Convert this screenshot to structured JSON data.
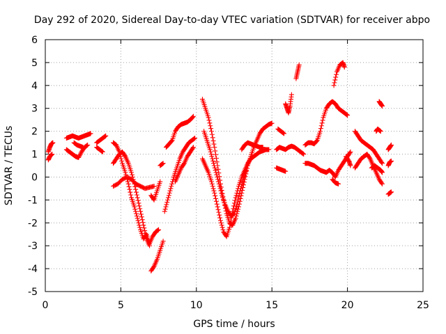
{
  "chart_data": {
    "type": "scatter",
    "title": "Day 292 of 2020, Sidereal Day-to-day VTEC variation (SDTVAR) for receiver abpo",
    "xlabel": "GPS time / hours",
    "ylabel": "SDTVAR / TECUs",
    "xlim": [
      0,
      25
    ],
    "ylim": [
      -5,
      6
    ],
    "xticks": [
      "0",
      "5",
      "10",
      "15",
      "20",
      "25"
    ],
    "yticks": [
      "-5",
      "-4",
      "-3",
      "-2",
      "-1",
      "0",
      "1",
      "2",
      "3",
      "4",
      "5",
      "6"
    ],
    "grid": true,
    "legend": "none",
    "marker": "plus",
    "color": "#ff0000",
    "segments": [
      {
        "x": [
          0.2,
          0.3,
          0.4,
          0.5
        ],
        "y": [
          1.1,
          1.3,
          1.45,
          1.5
        ]
      },
      {
        "x": [
          0.2,
          0.3,
          0.45
        ],
        "y": [
          0.75,
          0.9,
          1.0
        ]
      },
      {
        "x": [
          1.4,
          1.6,
          1.8,
          2.0,
          2.2,
          2.4,
          2.6,
          2.8,
          3.0
        ],
        "y": [
          1.7,
          1.75,
          1.8,
          1.75,
          1.7,
          1.75,
          1.8,
          1.85,
          1.9
        ]
      },
      {
        "x": [
          1.4,
          1.6,
          1.8,
          2.0,
          2.2,
          2.4,
          2.6,
          2.8
        ],
        "y": [
          1.2,
          1.1,
          1.0,
          0.9,
          0.85,
          1.1,
          1.3,
          1.4
        ]
      },
      {
        "x": [
          1.9,
          2.1,
          2.3,
          2.5
        ],
        "y": [
          1.5,
          1.4,
          1.35,
          1.3
        ]
      },
      {
        "x": [
          3.4,
          3.6,
          3.8,
          4.0
        ],
        "y": [
          1.5,
          1.6,
          1.7,
          1.8
        ]
      },
      {
        "x": [
          3.4,
          3.6,
          3.8
        ],
        "y": [
          1.3,
          1.2,
          1.1
        ]
      },
      {
        "x": [
          4.5,
          4.7,
          4.9,
          5.1,
          5.3,
          5.5,
          5.7,
          5.9,
          6.1,
          6.3,
          6.5,
          6.7,
          6.9
        ],
        "y": [
          0.6,
          0.8,
          1.0,
          1.1,
          0.9,
          0.6,
          0.2,
          -0.3,
          -0.9,
          -1.5,
          -2.1,
          -2.7,
          -3.0
        ]
      },
      {
        "x": [
          4.5,
          4.7,
          4.9,
          5.1,
          5.3,
          5.5,
          5.7,
          5.9,
          6.1,
          6.3,
          6.5,
          6.7,
          6.9,
          7.1,
          7.3,
          7.5
        ],
        "y": [
          1.5,
          1.4,
          1.1,
          0.6,
          0.2,
          -0.3,
          -0.9,
          -1.3,
          -1.8,
          -2.3,
          -2.7,
          -2.5,
          -2.9,
          -2.6,
          -2.4,
          -2.3
        ]
      },
      {
        "x": [
          4.5,
          4.8,
          5.1,
          5.4,
          5.7,
          6.0,
          6.3,
          6.6,
          6.9,
          7.2
        ],
        "y": [
          -0.4,
          -0.3,
          -0.1,
          0.0,
          -0.1,
          -0.3,
          -0.4,
          -0.5,
          -0.45,
          -0.4
        ]
      },
      {
        "x": [
          7.0,
          7.2,
          7.4,
          7.6,
          7.8
        ],
        "y": [
          -4.1,
          -3.9,
          -3.6,
          -3.2,
          -2.8
        ]
      },
      {
        "x": [
          7.0,
          7.2,
          7.4,
          7.6
        ],
        "y": [
          -0.8,
          -1.0,
          -0.6,
          -0.2
        ]
      },
      {
        "x": [
          7.6,
          7.8
        ],
        "y": [
          0.5,
          0.6
        ]
      },
      {
        "x": [
          7.9,
          8.1,
          8.3,
          8.5,
          8.7,
          8.9,
          9.1,
          9.3,
          9.5,
          9.7,
          9.9
        ],
        "y": [
          -1.5,
          -1.0,
          -0.5,
          0.0,
          0.4,
          0.8,
          1.1,
          1.3,
          1.5,
          1.6,
          1.7
        ]
      },
      {
        "x": [
          8.0,
          8.2,
          8.4,
          8.6,
          8.8,
          9.0,
          9.2,
          9.4,
          9.6,
          9.8
        ],
        "y": [
          1.3,
          1.45,
          1.6,
          2.0,
          2.2,
          2.3,
          2.35,
          2.4,
          2.5,
          2.65
        ]
      },
      {
        "x": [
          8.6,
          8.8,
          9.0,
          9.2,
          9.4,
          9.6,
          9.8
        ],
        "y": [
          -0.2,
          0.1,
          0.4,
          0.6,
          0.9,
          1.1,
          1.3
        ]
      },
      {
        "x": [
          10.4,
          10.6,
          10.8,
          11.0,
          11.2,
          11.4,
          11.6,
          11.8,
          12.0,
          12.2,
          12.4,
          12.6,
          12.8,
          13.0,
          13.2,
          13.4,
          13.6,
          13.8,
          14.0,
          14.2,
          14.4,
          14.6,
          14.8,
          15.0
        ],
        "y": [
          3.4,
          3.0,
          2.6,
          2.0,
          1.3,
          0.5,
          -0.3,
          -1.0,
          -1.6,
          -2.0,
          -2.1,
          -1.8,
          -1.3,
          -0.7,
          -0.1,
          0.5,
          0.9,
          1.3,
          1.6,
          1.9,
          2.1,
          2.2,
          2.3,
          2.35
        ]
      },
      {
        "x": [
          10.4,
          10.6,
          10.8,
          11.0,
          11.2,
          11.4,
          11.6,
          11.8,
          12.0,
          12.2,
          12.4,
          12.6,
          12.8,
          13.0,
          13.2,
          13.4,
          13.6,
          13.8,
          14.0,
          14.2,
          14.4,
          14.6,
          14.8
        ],
        "y": [
          0.8,
          0.5,
          0.2,
          -0.2,
          -0.7,
          -1.3,
          -1.9,
          -2.4,
          -2.6,
          -2.2,
          -1.5,
          -0.9,
          -0.4,
          0.0,
          0.3,
          0.6,
          0.8,
          0.9,
          1.0,
          1.1,
          1.15,
          1.2,
          1.2
        ]
      },
      {
        "x": [
          10.5,
          10.7,
          10.9,
          11.1,
          11.3,
          11.5,
          11.7,
          11.9,
          12.1,
          12.3,
          12.5,
          12.7,
          12.9,
          13.1,
          13.3
        ],
        "y": [
          2.0,
          1.6,
          1.2,
          0.7,
          0.2,
          -0.3,
          -0.8,
          -1.2,
          -1.5,
          -1.7,
          -1.6,
          -1.2,
          -0.6,
          -0.1,
          0.3
        ]
      },
      {
        "x": [
          13.0,
          13.2,
          13.4,
          13.6,
          13.8,
          14.0,
          14.2,
          14.4
        ],
        "y": [
          1.2,
          1.4,
          1.5,
          1.45,
          1.4,
          1.35,
          1.3,
          1.3
        ]
      },
      {
        "x": [
          15.4,
          15.6,
          15.8
        ],
        "y": [
          2.1,
          2.0,
          1.9
        ]
      },
      {
        "x": [
          15.3,
          15.5,
          15.7,
          15.9
        ],
        "y": [
          0.4,
          0.35,
          0.3,
          0.25
        ]
      },
      {
        "x": [
          15.3,
          15.5,
          15.7,
          15.9,
          16.1,
          16.3,
          16.5,
          16.7,
          16.9,
          17.1
        ],
        "y": [
          1.2,
          1.3,
          1.25,
          1.2,
          1.3,
          1.35,
          1.3,
          1.2,
          1.1,
          1.0
        ]
      },
      {
        "x": [
          15.9,
          16.0,
          16.1,
          16.2,
          16.3
        ],
        "y": [
          3.2,
          3.0,
          2.8,
          3.1,
          3.6
        ]
      },
      {
        "x": [
          16.6,
          16.7,
          16.8
        ],
        "y": [
          4.3,
          4.6,
          4.9
        ]
      },
      {
        "x": [
          17.2,
          17.4,
          17.6,
          17.8,
          18.0,
          18.2,
          18.4,
          18.6,
          18.8,
          19.0,
          19.2,
          19.4,
          19.6,
          19.8,
          20.0
        ],
        "y": [
          1.4,
          1.5,
          1.5,
          1.45,
          1.6,
          2.0,
          2.6,
          3.0,
          3.2,
          3.3,
          3.2,
          3.0,
          2.9,
          2.8,
          2.7
        ]
      },
      {
        "x": [
          17.2,
          17.4,
          17.6,
          17.8,
          18.0,
          18.2,
          18.4,
          18.6,
          18.8,
          19.0,
          19.2,
          19.4,
          19.6,
          19.8,
          20.0,
          20.2
        ],
        "y": [
          0.6,
          0.6,
          0.55,
          0.5,
          0.4,
          0.3,
          0.25,
          0.2,
          0.3,
          0.2,
          0.0,
          0.3,
          0.5,
          0.7,
          0.9,
          1.1
        ]
      },
      {
        "x": [
          19.0,
          19.2,
          19.4
        ],
        "y": [
          -0.1,
          -0.25,
          -0.3
        ]
      },
      {
        "x": [
          19.1,
          19.3,
          19.5,
          19.7,
          19.8
        ],
        "y": [
          4.0,
          4.6,
          4.9,
          5.0,
          4.8
        ]
      },
      {
        "x": [
          19.9,
          20.1,
          20.2
        ],
        "y": [
          0.9,
          0.7,
          0.5
        ]
      },
      {
        "x": [
          20.5,
          20.7,
          20.9,
          21.1,
          21.3,
          21.5,
          21.7,
          21.9,
          22.1,
          22.3
        ],
        "y": [
          2.0,
          1.8,
          1.6,
          1.5,
          1.4,
          1.3,
          1.2,
          1.0,
          0.8,
          0.6
        ]
      },
      {
        "x": [
          20.5,
          20.7,
          20.9,
          21.1,
          21.3,
          21.5,
          21.7,
          21.9,
          22.1,
          22.3
        ],
        "y": [
          0.4,
          0.6,
          0.8,
          0.9,
          1.0,
          0.8,
          0.5,
          0.2,
          -0.1,
          -0.3
        ]
      },
      {
        "x": [
          21.6,
          21.8,
          22.0,
          22.2,
          22.3
        ],
        "y": [
          0.4,
          0.5,
          0.4,
          0.3,
          0.2
        ]
      },
      {
        "x": [
          21.9,
          22.0,
          22.2
        ],
        "y": [
          2.0,
          2.1,
          2.0
        ]
      },
      {
        "x": [
          22.1,
          22.2,
          22.3
        ],
        "y": [
          3.3,
          3.2,
          3.1
        ]
      },
      {
        "x": [
          22.7,
          22.8,
          22.9
        ],
        "y": [
          1.2,
          1.3,
          1.4
        ]
      },
      {
        "x": [
          22.7,
          22.8,
          22.9
        ],
        "y": [
          0.5,
          0.65,
          0.7
        ]
      },
      {
        "x": [
          22.7,
          22.8,
          22.9
        ],
        "y": [
          -0.75,
          -0.7,
          -0.65
        ]
      }
    ]
  }
}
